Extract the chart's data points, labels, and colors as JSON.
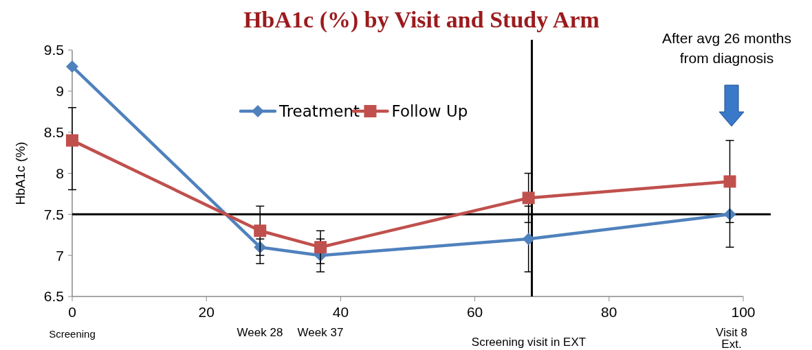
{
  "chart_data": {
    "type": "line",
    "title": "HbA1c (%) by Visit and Study Arm",
    "ylabel": "HbA1c (%)",
    "x": [
      0,
      28,
      37,
      68,
      98
    ],
    "series": [
      {
        "name": "Treatment",
        "color": "#4f81bd",
        "marker": "diamond",
        "values": [
          9.3,
          7.1,
          7.0,
          7.2,
          7.5
        ],
        "errors": [
          null,
          [
            6.9,
            7.2
          ],
          [
            6.8,
            7.2
          ],
          [
            6.8,
            7.6
          ],
          [
            7.1,
            7.5
          ]
        ]
      },
      {
        "name": "Follow Up",
        "color": "#c0504d",
        "marker": "square",
        "values": [
          8.4,
          7.3,
          7.1,
          7.7,
          7.9
        ],
        "errors": [
          [
            7.8,
            8.8
          ],
          [
            7.0,
            7.6
          ],
          [
            6.9,
            7.3
          ],
          [
            7.4,
            8.0
          ],
          [
            7.4,
            8.4
          ]
        ]
      }
    ],
    "xlim": [
      0,
      100
    ],
    "xticks": [
      0,
      20,
      40,
      60,
      80,
      100
    ],
    "ylim": [
      6.5,
      9.5
    ],
    "yticks": [
      6.5,
      7,
      7.5,
      8,
      8.5,
      9,
      9.5
    ],
    "ref_lines": [
      {
        "axis": "y",
        "value": 7.5,
        "color": "#000000"
      },
      {
        "axis": "x",
        "value": 68.5,
        "color": "#000000"
      }
    ],
    "annotations": [
      "Screening",
      "Week 28",
      "Week 37",
      "Screening visit in EXT",
      "Visit 8\nExt.",
      "After  avg 26 months\nfrom diagnosis"
    ],
    "legend": "top",
    "grid": false
  }
}
